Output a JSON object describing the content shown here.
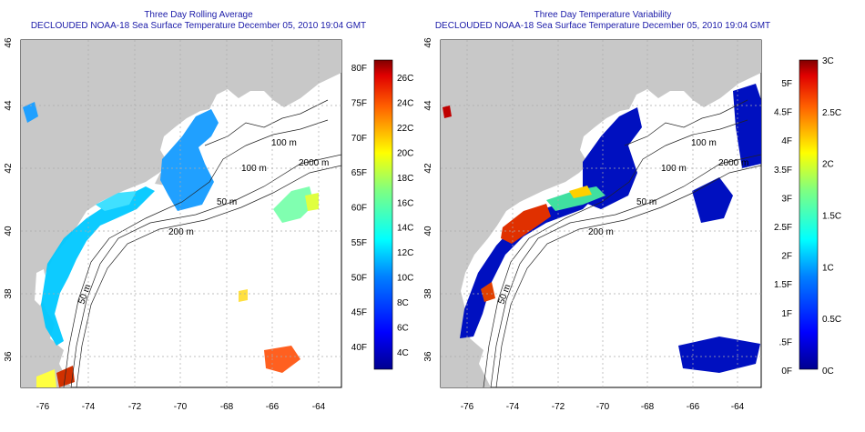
{
  "left": {
    "title": "Three Day Rolling Average",
    "subtitle": "DECLOUDED NOAA-18 Sea Surface Temperature December 05, 2010 19:04 GMT",
    "colorbar": {
      "fahrenheit": [
        "40F",
        "45F",
        "50F",
        "55F",
        "60F",
        "65F",
        "70F",
        "75F",
        "80F"
      ],
      "celsius": [
        "4C",
        "6C",
        "8C",
        "10C",
        "12C",
        "14C",
        "16C",
        "18C",
        "20C",
        "22C",
        "24C",
        "26C"
      ]
    }
  },
  "right": {
    "title": "Three Day Temperature Variability",
    "subtitle": "DECLOUDED NOAA-18 Sea Surface Temperature December 05, 2010 19:04 GMT",
    "colorbar": {
      "fahrenheit": [
        "0F",
        ".5F",
        "1F",
        "1.5F",
        "2F",
        "2.5F",
        "3F",
        "3.5F",
        "4F",
        "4.5F",
        "5F"
      ],
      "celsius": [
        "0C",
        "0.5C",
        "1C",
        "1.5C",
        "2C",
        "2.5C",
        "3C"
      ]
    }
  },
  "axes": {
    "x_ticks": [
      "-76",
      "-74",
      "-72",
      "-70",
      "-68",
      "-66",
      "-64"
    ],
    "y_ticks": [
      "36",
      "38",
      "40",
      "42",
      "44",
      "46"
    ]
  },
  "contour_labels": [
    "100 m",
    "100 m",
    "2000 m",
    "50 m",
    "200 m",
    "50 m"
  ],
  "colors": {
    "land": "#c8c8c8",
    "title": "#1a1aa8",
    "grid": "#aaaaaa"
  }
}
